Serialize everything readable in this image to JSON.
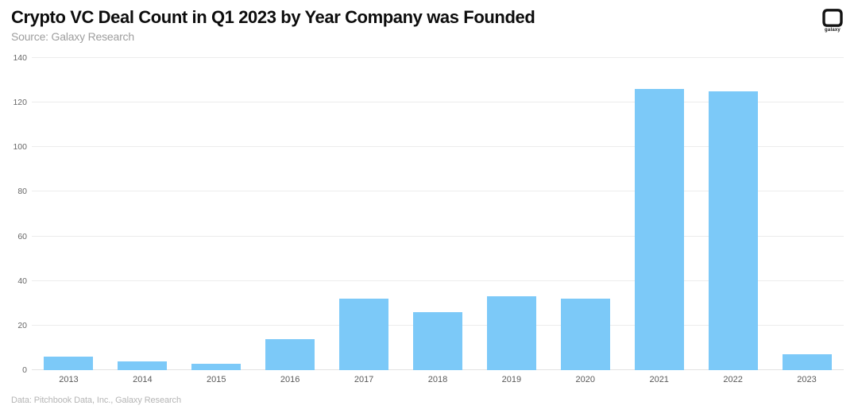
{
  "header": {
    "title": "Crypto VC Deal Count in Q1 2023 by Year Company was Founded",
    "subtitle": "Source: Galaxy Research",
    "logo_label": "galaxy"
  },
  "footer": {
    "credit": "Data: Pitchbook Data, Inc., Galaxy Research"
  },
  "chart_data": {
    "type": "bar",
    "title": "Crypto VC Deal Count in Q1 2023 by Year Company was Founded",
    "subtitle": "Source: Galaxy Research",
    "categories": [
      "2013",
      "2014",
      "2015",
      "2016",
      "2017",
      "2018",
      "2019",
      "2020",
      "2021",
      "2022",
      "2023"
    ],
    "values": [
      6,
      4,
      3,
      14,
      32,
      26,
      33,
      32,
      126,
      125,
      7
    ],
    "xlabel": "",
    "ylabel": "",
    "ylim": [
      0,
      140
    ],
    "ytick_step": 20,
    "yticks": [
      0,
      20,
      40,
      60,
      80,
      100,
      120,
      140
    ],
    "grid": true,
    "legend": false,
    "bar_color": "#7CC9F8",
    "gridline_color": "#ECECEC",
    "axis_text_color": "#666666"
  }
}
